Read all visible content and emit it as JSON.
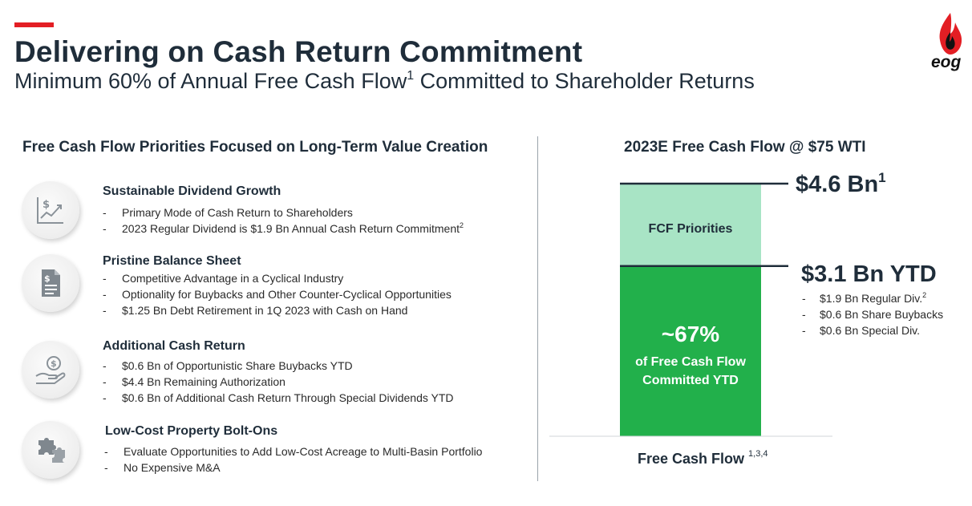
{
  "header": {
    "title": "Delivering on Cash Return Commitment",
    "subtitle_main": "Minimum 60% of Annual Free Cash Flow",
    "subtitle_sup": "1",
    "subtitle_rest": " Committed to Shareholder Returns",
    "logo_text": "eog",
    "accent_color": "#e31e24"
  },
  "left": {
    "heading": "Free Cash Flow Priorities Focused on Long-Term Value Creation",
    "items": [
      {
        "icon": "dollar-chart-icon",
        "heading": "Sustainable Dividend Growth",
        "bullets": [
          {
            "dash": "-",
            "text": "Primary Mode of Cash Return to Shareholders",
            "sup": ""
          },
          {
            "dash": "-",
            "text": "2023 Regular Dividend is $1.9 Bn Annual Cash Return Commitment",
            "sup": "2"
          }
        ]
      },
      {
        "icon": "document-dollar-icon",
        "heading": "Pristine Balance Sheet",
        "bullets": [
          {
            "dash": "-",
            "text": "Competitive Advantage in a Cyclical Industry",
            "sup": ""
          },
          {
            "dash": "-",
            "text": "Optionality for Buybacks and Other Counter-Cyclical Opportunities",
            "sup": ""
          },
          {
            "dash": "-",
            "text": "$1.25 Bn Debt Retirement in 1Q 2023 with Cash on Hand",
            "sup": ""
          }
        ]
      },
      {
        "icon": "hand-coin-icon",
        "heading": "Additional Cash Return",
        "bullets": [
          {
            "dash": "-",
            "text": "$0.6 Bn of Opportunistic Share Buybacks YTD",
            "sup": ""
          },
          {
            "dash": "-",
            "text": "$4.4 Bn Remaining Authorization",
            "sup": ""
          },
          {
            "dash": "-",
            "text": "$0.6 Bn of Additional Cash Return Through Special Dividends YTD",
            "sup": ""
          }
        ]
      },
      {
        "icon": "puzzle-pieces-icon",
        "heading": "Low-Cost Property Bolt-Ons",
        "bullets": [
          {
            "dash": "-",
            "text": "Evaluate Opportunities to Add Low-Cost Acreage to Multi-Basin Portfolio",
            "sup": ""
          },
          {
            "dash": "-",
            "text": "No Expensive M&A",
            "sup": ""
          }
        ]
      }
    ]
  },
  "chart_data": {
    "type": "bar",
    "title": "2023E Free Cash Flow @ $75 WTI",
    "categories": [
      "Free Cash Flow"
    ],
    "xlabel_sup": "1,3,4",
    "unit": "Bn",
    "series": [
      {
        "values": [
          3.1
        ],
        "color": "#22b04b"
      },
      {
        "values": [
          1.5
        ],
        "color": "#a8e4c5"
      }
    ],
    "total": 4.6,
    "segment_labels": {
      "top": "FCF Priorities",
      "bottom_pct": "~67%",
      "bottom_desc_1": "of Free Cash Flow",
      "bottom_desc_2": "Committed YTD"
    },
    "annotations": {
      "total_label": "$4.6 Bn",
      "total_sup": "1",
      "ytd_label": "$3.1 Bn YTD",
      "ytd_breakdown": [
        {
          "dash": "-",
          "text": "$1.9 Bn Regular Div.",
          "sup": "2"
        },
        {
          "dash": "-",
          "text": "$0.6 Bn Share Buybacks",
          "sup": ""
        },
        {
          "dash": "-",
          "text": "$0.6 Bn Special Div.",
          "sup": ""
        }
      ]
    }
  }
}
